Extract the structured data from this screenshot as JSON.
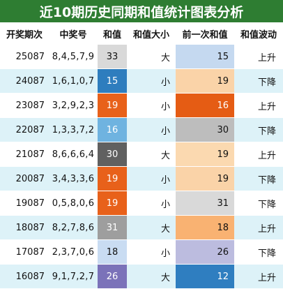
{
  "title": "近10期历史同期和值统计图表分析",
  "headers": [
    "开奖期次",
    "中奖号",
    "和值",
    "和值大小",
    "前一次和值",
    "和值波动"
  ],
  "rows": [
    {
      "period": "25087",
      "numbers": "8,4,5,7,9",
      "sum": "33",
      "sum_color": "#d9d9d9",
      "sum_text": "#111111",
      "size": "大",
      "prev": "15",
      "prev_color": "#c5d9f0",
      "prev_text": "#111111",
      "trend": "上升"
    },
    {
      "period": "24087",
      "numbers": "1,6,1,0,7",
      "sum": "15",
      "sum_color": "#2e7dbe",
      "sum_text": "#ffffff",
      "size": "小",
      "prev": "19",
      "prev_color": "#fad3a8",
      "prev_text": "#111111",
      "trend": "下降"
    },
    {
      "period": "23087",
      "numbers": "3,2,9,2,3",
      "sum": "19",
      "sum_color": "#e8611a",
      "sum_text": "#ffffff",
      "size": "小",
      "prev": "16",
      "prev_color": "#e55c14",
      "prev_text": "#ffffff",
      "trend": "上升"
    },
    {
      "period": "22087",
      "numbers": "1,3,3,7,2",
      "sum": "16",
      "sum_color": "#6fb3e0",
      "sum_text": "#ffffff",
      "size": "小",
      "prev": "30",
      "prev_color": "#bdbdbd",
      "prev_text": "#111111",
      "trend": "下降"
    },
    {
      "period": "21087",
      "numbers": "8,6,6,6,4",
      "sum": "30",
      "sum_color": "#606060",
      "sum_text": "#ffffff",
      "size": "大",
      "prev": "19",
      "prev_color": "#fbd9b0",
      "prev_text": "#111111",
      "trend": "上升"
    },
    {
      "period": "20087",
      "numbers": "3,4,3,3,6",
      "sum": "19",
      "sum_color": "#e8611a",
      "sum_text": "#ffffff",
      "size": "小",
      "prev": "19",
      "prev_color": "#fad3a8",
      "prev_text": "#111111",
      "trend": "下降"
    },
    {
      "period": "19087",
      "numbers": "0,5,8,0,6",
      "sum": "19",
      "sum_color": "#e8611a",
      "sum_text": "#ffffff",
      "size": "小",
      "prev": "31",
      "prev_color": "#d9d9d9",
      "prev_text": "#111111",
      "trend": "下降"
    },
    {
      "period": "18087",
      "numbers": "8,2,7,8,6",
      "sum": "31",
      "sum_color": "#9e9e9e",
      "sum_text": "#ffffff",
      "size": "大",
      "prev": "18",
      "prev_color": "#f9b272",
      "prev_text": "#111111",
      "trend": "上升"
    },
    {
      "period": "17087",
      "numbers": "2,3,7,0,6",
      "sum": "18",
      "sum_color": "#c9dcf2",
      "sum_text": "#111111",
      "size": "小",
      "prev": "26",
      "prev_color": "#bcbcdf",
      "prev_text": "#111111",
      "trend": "下降"
    },
    {
      "period": "16087",
      "numbers": "9,1,7,2,7",
      "sum": "26",
      "sum_color": "#7b72b9",
      "sum_text": "#ffffff",
      "size": "大",
      "prev": "12",
      "prev_color": "#2f7ec0",
      "prev_text": "#ffffff",
      "trend": "上升"
    }
  ]
}
